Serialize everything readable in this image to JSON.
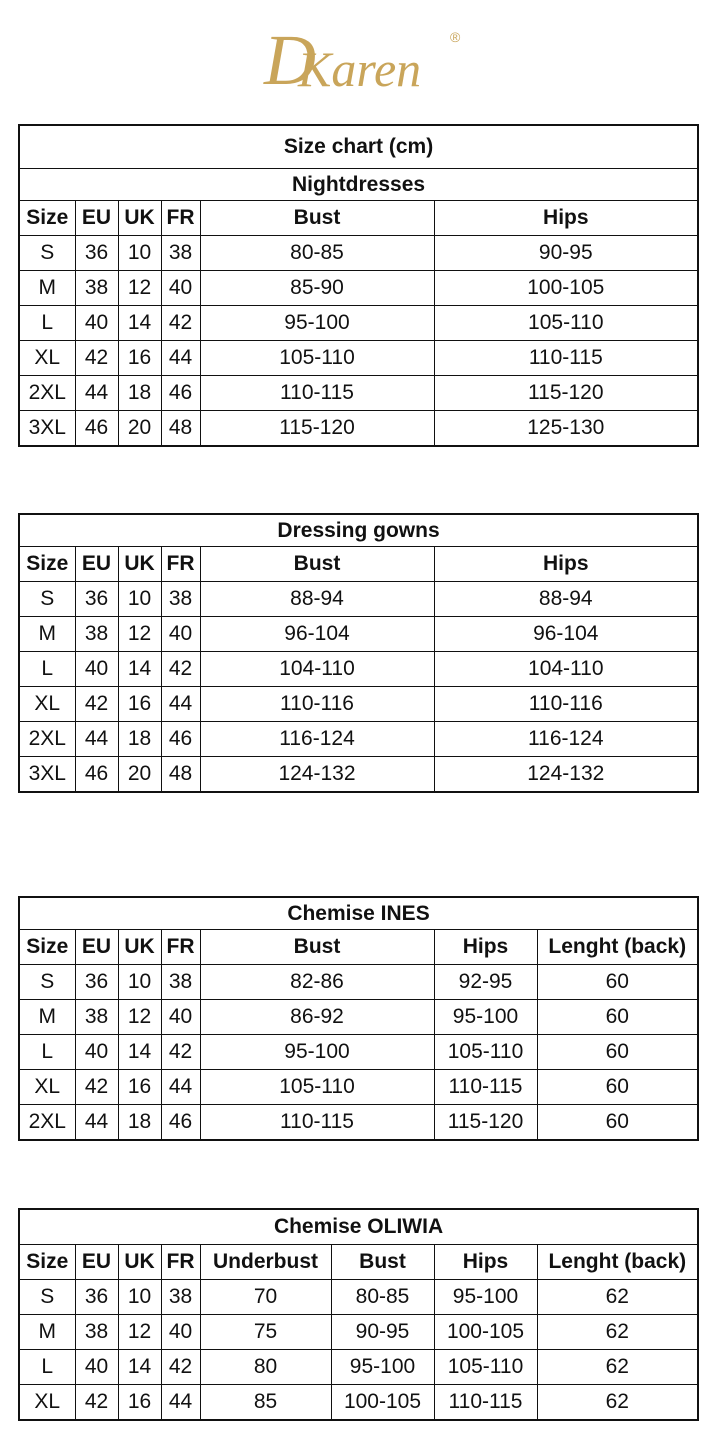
{
  "logo": {
    "text": "DKaren",
    "registered": "®",
    "color": "#c9a55a"
  },
  "tables": [
    {
      "titles": [
        "Size chart (cm)",
        "Nightdresses"
      ],
      "headers": [
        "Size",
        "EU",
        "UK",
        "FR",
        "Bust",
        "Hips"
      ],
      "rows": [
        [
          "S",
          "36",
          "10",
          "38",
          "80-85",
          "90-95"
        ],
        [
          "M",
          "38",
          "12",
          "40",
          "85-90",
          "100-105"
        ],
        [
          "L",
          "40",
          "14",
          "42",
          "95-100",
          "105-110"
        ],
        [
          "XL",
          "42",
          "16",
          "44",
          "105-110",
          "110-115"
        ],
        [
          "2XL",
          "44",
          "18",
          "46",
          "110-115",
          "115-120"
        ],
        [
          "3XL",
          "46",
          "20",
          "48",
          "115-120",
          "125-130"
        ]
      ]
    },
    {
      "titles": [
        "Dressing gowns"
      ],
      "headers": [
        "Size",
        "EU",
        "UK",
        "FR",
        "Bust",
        "Hips"
      ],
      "rows": [
        [
          "S",
          "36",
          "10",
          "38",
          "88-94",
          "88-94"
        ],
        [
          "M",
          "38",
          "12",
          "40",
          "96-104",
          "96-104"
        ],
        [
          "L",
          "40",
          "14",
          "42",
          "104-110",
          "104-110"
        ],
        [
          "XL",
          "42",
          "16",
          "44",
          "110-116",
          "110-116"
        ],
        [
          "2XL",
          "44",
          "18",
          "46",
          "116-124",
          "116-124"
        ],
        [
          "3XL",
          "46",
          "20",
          "48",
          "124-132",
          "124-132"
        ]
      ]
    },
    {
      "titles": [
        "Chemise INES"
      ],
      "headers": [
        "Size",
        "EU",
        "UK",
        "FR",
        "Bust",
        "Hips",
        "Lenght (back)"
      ],
      "rows": [
        [
          "S",
          "36",
          "10",
          "38",
          "82-86",
          "92-95",
          "60"
        ],
        [
          "M",
          "38",
          "12",
          "40",
          "86-92",
          "95-100",
          "60"
        ],
        [
          "L",
          "40",
          "14",
          "42",
          "95-100",
          "105-110",
          "60"
        ],
        [
          "XL",
          "42",
          "16",
          "44",
          "105-110",
          "110-115",
          "60"
        ],
        [
          "2XL",
          "44",
          "18",
          "46",
          "110-115",
          "115-120",
          "60"
        ]
      ]
    },
    {
      "titles": [
        "Chemise OLIWIA"
      ],
      "headers": [
        "Size",
        "EU",
        "UK",
        "FR",
        "Underbust",
        "Bust",
        "Hips",
        "Lenght (back)"
      ],
      "rows": [
        [
          "S",
          "36",
          "10",
          "38",
          "70",
          "80-85",
          "95-100",
          "62"
        ],
        [
          "M",
          "38",
          "12",
          "40",
          "75",
          "90-95",
          "100-105",
          "62"
        ],
        [
          "L",
          "40",
          "14",
          "42",
          "80",
          "95-100",
          "105-110",
          "62"
        ],
        [
          "XL",
          "42",
          "16",
          "44",
          "85",
          "100-105",
          "110-115",
          "62"
        ]
      ]
    }
  ]
}
